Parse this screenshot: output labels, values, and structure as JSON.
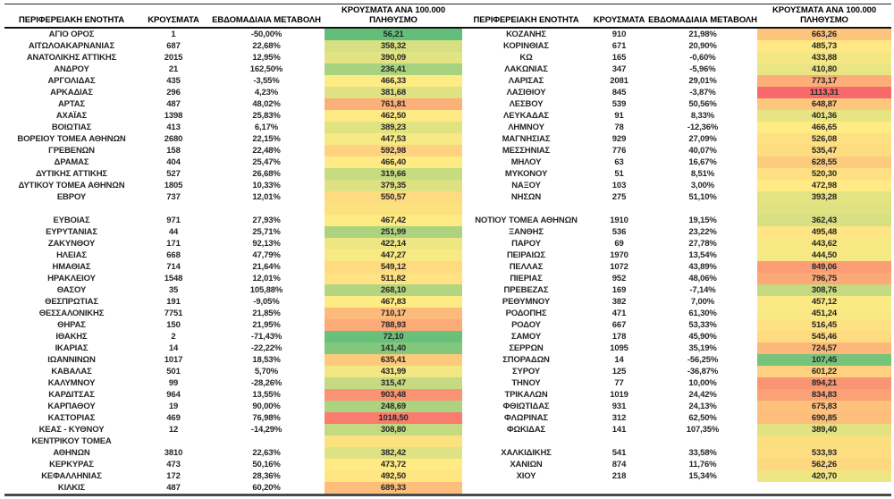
{
  "page": {
    "background": "#ffffff",
    "text_color": "#262626"
  },
  "color_scale": {
    "type": "3-color-scale",
    "min_color": "#63BE7B",
    "mid_color": "#FFEB84",
    "max_color": "#F8696B",
    "midpoint": "median"
  },
  "tables": [
    {
      "id": "left",
      "headers": {
        "region": "ΠΕΡΙΦΕΡΕΙΑΚΗ ΕΝΟΤΗΤΑ",
        "cases": "ΚΡΟΥΣΜΑΤΑ",
        "weekly_change": "ΕΒΔΟΜΑΔΙΑΙΑ ΜΕΤΑΒΟΛΗ",
        "per_100k": "ΚΡΟΥΣΜΑΤΑ ΑΝΑ 100.000 ΠΛΗΘΥΣΜΟ"
      },
      "rows": [
        {
          "region": "ΑΓΙΟ ΟΡΟΣ",
          "cases": 1,
          "weekly_change": "-50,00%",
          "per_100k": 56.21
        },
        {
          "region": "ΑΙΤΩΛΟΑΚΑΡΝΑΝΙΑΣ",
          "cases": 687,
          "weekly_change": "22,68%",
          "per_100k": 358.32
        },
        {
          "region": "ΑΝΑΤΟΛΙΚΗΣ ΑΤΤΙΚΗΣ",
          "cases": 2015,
          "weekly_change": "12,95%",
          "per_100k": 390.09
        },
        {
          "region": "ΑΝΔΡΟΥ",
          "cases": 21,
          "weekly_change": "162,50%",
          "per_100k": 236.41
        },
        {
          "region": "ΑΡΓΟΛΙΔΑΣ",
          "cases": 435,
          "weekly_change": "-3,55%",
          "per_100k": 466.33
        },
        {
          "region": "ΑΡΚΑΔΙΑΣ",
          "cases": 296,
          "weekly_change": "4,23%",
          "per_100k": 381.68
        },
        {
          "region": "ΑΡΤΑΣ",
          "cases": 487,
          "weekly_change": "48,02%",
          "per_100k": 761.81
        },
        {
          "region": "ΑΧΑΪΑΣ",
          "cases": 1398,
          "weekly_change": "25,83%",
          "per_100k": 462.5
        },
        {
          "region": "ΒΟΙΩΤΙΑΣ",
          "cases": 413,
          "weekly_change": "6,17%",
          "per_100k": 389.23
        },
        {
          "region": "ΒΟΡΕΙΟΥ ΤΟΜΕΑ ΑΘΗΝΩΝ",
          "cases": 2680,
          "weekly_change": "22,15%",
          "per_100k": 447.53
        },
        {
          "region": "ΓΡΕΒΕΝΩΝ",
          "cases": 158,
          "weekly_change": "22,48%",
          "per_100k": 592.98
        },
        {
          "region": "ΔΡΑΜΑΣ",
          "cases": 404,
          "weekly_change": "25,47%",
          "per_100k": 466.4
        },
        {
          "region": "ΔΥΤΙΚΗΣ ΑΤΤΙΚΗΣ",
          "cases": 527,
          "weekly_change": "26,68%",
          "per_100k": 319.66
        },
        {
          "region": "ΔΥΤΙΚΟΥ ΤΟΜΕΑ ΑΘΗΝΩΝ",
          "cases": 1805,
          "weekly_change": "10,33%",
          "per_100k": 379.35
        },
        {
          "region": "ΕΒΡΟΥ",
          "cases": 737,
          "weekly_change": "12,01%",
          "per_100k": 550.57
        },
        {
          "spacer": true,
          "spacer_color": "#FBE27E"
        },
        {
          "region": "ΕΥΒΟΙΑΣ",
          "cases": 971,
          "weekly_change": "27,93%",
          "per_100k": 467.42
        },
        {
          "region": "ΕΥΡΥΤΑΝΙΑΣ",
          "cases": 44,
          "weekly_change": "25,71%",
          "per_100k": 251.99
        },
        {
          "region": "ΖΑΚΥΝΘΟΥ",
          "cases": 171,
          "weekly_change": "92,13%",
          "per_100k": 422.14
        },
        {
          "region": "ΗΛΕΙΑΣ",
          "cases": 668,
          "weekly_change": "47,79%",
          "per_100k": 447.27
        },
        {
          "region": "ΗΜΑΘΙΑΣ",
          "cases": 714,
          "weekly_change": "21,64%",
          "per_100k": 549.12
        },
        {
          "region": "ΗΡΑΚΛΕΙΟΥ",
          "cases": 1548,
          "weekly_change": "12,01%",
          "per_100k": 511.82
        },
        {
          "region": "ΘΑΣΟΥ",
          "cases": 35,
          "weekly_change": "105,88%",
          "per_100k": 268.1
        },
        {
          "region": "ΘΕΣΠΡΩΤΙΑΣ",
          "cases": 191,
          "weekly_change": "-9,05%",
          "per_100k": 467.83
        },
        {
          "region": "ΘΕΣΣΑΛΟΝΙΚΗΣ",
          "cases": 7751,
          "weekly_change": "21,85%",
          "per_100k": 710.17
        },
        {
          "region": "ΘΗΡΑΣ",
          "cases": 150,
          "weekly_change": "21,95%",
          "per_100k": 788.93
        },
        {
          "region": "ΙΘΑΚΗΣ",
          "cases": 2,
          "weekly_change": "-71,43%",
          "per_100k": 72.1
        },
        {
          "region": "ΙΚΑΡΙΑΣ",
          "cases": 14,
          "weekly_change": "-22,22%",
          "per_100k": 141.4
        },
        {
          "region": "ΙΩΑΝΝΙΝΩΝ",
          "cases": 1017,
          "weekly_change": "18,53%",
          "per_100k": 635.41
        },
        {
          "region": "ΚΑΒΑΛΑΣ",
          "cases": 501,
          "weekly_change": "5,70%",
          "per_100k": 431.99
        },
        {
          "region": "ΚΑΛΥΜΝΟΥ",
          "cases": 99,
          "weekly_change": "-28,26%",
          "per_100k": 315.47
        },
        {
          "region": "ΚΑΡΔΙΤΣΑΣ",
          "cases": 964,
          "weekly_change": "13,55%",
          "per_100k": 903.48
        },
        {
          "region": "ΚΑΡΠΑΘΟΥ",
          "cases": 19,
          "weekly_change": "90,00%",
          "per_100k": 248.69
        },
        {
          "region": "ΚΑΣΤΟΡΙΑΣ",
          "cases": 469,
          "weekly_change": "76,98%",
          "per_100k": 1018.5
        },
        {
          "region": "ΚΕΑΣ - ΚΥΘΝΟΥ",
          "cases": 12,
          "weekly_change": "-14,29%",
          "per_100k": 308.8
        },
        {
          "region": "ΚΕΝΤΡΙΚΟΥ ΤΟΜΕΑ",
          "cases": "",
          "weekly_change": "",
          "per_100k": null,
          "spacer_color": "#FBE27E"
        },
        {
          "region": "ΑΘΗΝΩΝ",
          "cases": 3810,
          "weekly_change": "22,63%",
          "per_100k": 382.42
        },
        {
          "region": "ΚΕΡΚΥΡΑΣ",
          "cases": 473,
          "weekly_change": "50,16%",
          "per_100k": 473.72
        },
        {
          "region": "ΚΕΦΑΛΛΗΝΙΑΣ",
          "cases": 172,
          "weekly_change": "28,36%",
          "per_100k": 492.5
        },
        {
          "region": "ΚΙΛΚΙΣ",
          "cases": 487,
          "weekly_change": "60,20%",
          "per_100k": 689.33
        }
      ]
    },
    {
      "id": "right",
      "headers": {
        "region": "ΠΕΡΙΦΕΡΕΙΑΚΗ ΕΝΟΤΗΤΑ",
        "cases": "ΚΡΟΥΣΜΑΤΑ",
        "weekly_change": "ΕΒΔΟΜΑΔΙΑΙΑ ΜΕΤΑΒΟΛΗ",
        "per_100k": "ΚΡΟΥΣΜΑΤΑ ΑΝΑ 100.000 ΠΛΗΘΥΣΜΟ"
      },
      "rows": [
        {
          "region": "ΚΟΖΑΝΗΣ",
          "cases": 910,
          "weekly_change": "21,98%",
          "per_100k": 663.26
        },
        {
          "region": "ΚΟΡΙΝΘΙΑΣ",
          "cases": 671,
          "weekly_change": "20,90%",
          "per_100k": 485.73
        },
        {
          "region": "ΚΩ",
          "cases": 165,
          "weekly_change": "-0,60%",
          "per_100k": 433.88
        },
        {
          "region": "ΛΑΚΩΝΙΑΣ",
          "cases": 347,
          "weekly_change": "-5,96%",
          "per_100k": 410.8
        },
        {
          "region": "ΛΑΡΙΣΑΣ",
          "cases": 2081,
          "weekly_change": "29,01%",
          "per_100k": 773.17
        },
        {
          "region": "ΛΑΣΙΘΙΟΥ",
          "cases": 845,
          "weekly_change": "-3,87%",
          "per_100k": 1113.31
        },
        {
          "region": "ΛΕΣΒΟΥ",
          "cases": 539,
          "weekly_change": "50,56%",
          "per_100k": 648.87
        },
        {
          "region": "ΛΕΥΚΑΔΑΣ",
          "cases": 91,
          "weekly_change": "8,33%",
          "per_100k": 401.36
        },
        {
          "region": "ΛΗΜΝΟΥ",
          "cases": 78,
          "weekly_change": "-12,36%",
          "per_100k": 466.65
        },
        {
          "region": "ΜΑΓΝΗΣΙΑΣ",
          "cases": 929,
          "weekly_change": "27,09%",
          "per_100k": 526.08
        },
        {
          "region": "ΜΕΣΣΗΝΙΑΣ",
          "cases": 776,
          "weekly_change": "40,07%",
          "per_100k": 535.47
        },
        {
          "region": "ΜΗΛΟΥ",
          "cases": 63,
          "weekly_change": "16,67%",
          "per_100k": 628.55
        },
        {
          "region": "ΜΥΚΟΝΟΥ",
          "cases": 51,
          "weekly_change": "8,51%",
          "per_100k": 520.3
        },
        {
          "region": "ΝΑΞΟΥ",
          "cases": 103,
          "weekly_change": "3,00%",
          "per_100k": 472.98
        },
        {
          "region": "ΝΗΣΩΝ",
          "cases": 275,
          "weekly_change": "51,10%",
          "per_100k": 393.28
        },
        {
          "spacer": true,
          "spacer_color": "#DEE282"
        },
        {
          "region": "ΝΟΤΙΟΥ ΤΟΜΕΑ ΑΘΗΝΩΝ",
          "cases": 1910,
          "weekly_change": "19,15%",
          "per_100k": 362.43
        },
        {
          "region": "ΞΑΝΘΗΣ",
          "cases": 536,
          "weekly_change": "23,22%",
          "per_100k": 495.48
        },
        {
          "region": "ΠΑΡΟΥ",
          "cases": 69,
          "weekly_change": "27,78%",
          "per_100k": 443.62
        },
        {
          "region": "ΠΕΙΡΑΙΩΣ",
          "cases": 1970,
          "weekly_change": "13,54%",
          "per_100k": 444.5
        },
        {
          "region": "ΠΕΛΛΑΣ",
          "cases": 1072,
          "weekly_change": "43,89%",
          "per_100k": 849.06
        },
        {
          "region": "ΠΙΕΡΙΑΣ",
          "cases": 952,
          "weekly_change": "48,06%",
          "per_100k": 796.75
        },
        {
          "region": "ΠΡΕΒΕΖΑΣ",
          "cases": 169,
          "weekly_change": "-7,14%",
          "per_100k": 308.76
        },
        {
          "region": "ΡΕΘΥΜΝΟΥ",
          "cases": 382,
          "weekly_change": "7,00%",
          "per_100k": 457.12
        },
        {
          "region": "ΡΟΔΟΠΗΣ",
          "cases": 471,
          "weekly_change": "61,30%",
          "per_100k": 451.24
        },
        {
          "region": "ΡΟΔΟΥ",
          "cases": 667,
          "weekly_change": "53,33%",
          "per_100k": 516.45
        },
        {
          "region": "ΣΑΜΟΥ",
          "cases": 178,
          "weekly_change": "45,90%",
          "per_100k": 545.46
        },
        {
          "region": "ΣΕΡΡΩΝ",
          "cases": 1095,
          "weekly_change": "35,19%",
          "per_100k": 724.57
        },
        {
          "region": "ΣΠΟΡΑΔΩΝ",
          "cases": 14,
          "weekly_change": "-56,25%",
          "per_100k": 107.45
        },
        {
          "region": "ΣΥΡΟΥ",
          "cases": 125,
          "weekly_change": "-36,87%",
          "per_100k": 601.22
        },
        {
          "region": "ΤΗΝΟΥ",
          "cases": 77,
          "weekly_change": "10,00%",
          "per_100k": 894.21
        },
        {
          "region": "ΤΡΙΚΑΛΩΝ",
          "cases": 1019,
          "weekly_change": "24,42%",
          "per_100k": 834.83
        },
        {
          "region": "ΦΘΙΩΤΙΔΑΣ",
          "cases": 931,
          "weekly_change": "24,13%",
          "per_100k": 675.83
        },
        {
          "region": "ΦΛΩΡΙΝΑΣ",
          "cases": 312,
          "weekly_change": "62,50%",
          "per_100k": 690.85
        },
        {
          "region": "ΦΩΚΙΔΑΣ",
          "cases": 141,
          "weekly_change": "107,35%",
          "per_100k": 389.4
        },
        {
          "spacer": true,
          "spacer_color": "#FBDF7E"
        },
        {
          "region": "ΧΑΛΚΙΔΙΚΗΣ",
          "cases": 541,
          "weekly_change": "33,58%",
          "per_100k": 533.93
        },
        {
          "region": "ΧΑΝΙΩΝ",
          "cases": 874,
          "weekly_change": "11,76%",
          "per_100k": 562.26
        },
        {
          "region": "ΧΙΟΥ",
          "cases": 218,
          "weekly_change": "15,34%",
          "per_100k": 420.7
        },
        {
          "spacer": true,
          "spacer_color": null
        }
      ]
    }
  ]
}
